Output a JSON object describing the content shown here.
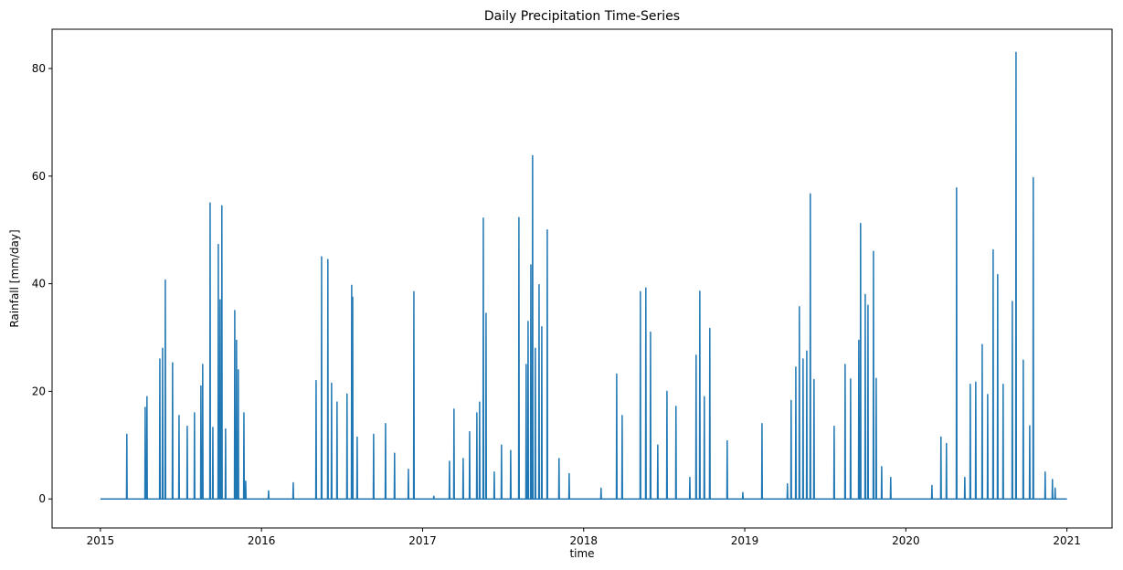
{
  "chart_data": {
    "type": "line",
    "title": "Daily Precipitation Time-Series",
    "xlabel": "time",
    "ylabel": "Rainfall [mm/day]",
    "color": "#1f77b4",
    "xlim": [
      2014.7,
      2021.28
    ],
    "xticks": [
      2015,
      2016,
      2017,
      2018,
      2019,
      2020,
      2021
    ],
    "ylim": [
      -5.4,
      87.3
    ],
    "yticks": [
      0,
      20,
      40,
      60,
      80
    ],
    "x": [
      2015.0,
      2015.162,
      2015.164,
      2015.166,
      2015.276,
      2015.278,
      2015.28,
      2015.287,
      2015.289,
      2015.291,
      2015.367,
      2015.369,
      2015.371,
      2015.384,
      2015.386,
      2015.388,
      2015.401,
      2015.403,
      2015.405,
      2015.446,
      2015.448,
      2015.45,
      2015.486,
      2015.488,
      2015.49,
      2015.537,
      2015.539,
      2015.541,
      2015.582,
      2015.584,
      2015.586,
      2015.622,
      2015.624,
      2015.626,
      2015.633,
      2015.635,
      2015.637,
      2015.679,
      2015.681,
      2015.683,
      2015.696,
      2015.698,
      2015.7,
      2015.73,
      2015.732,
      2015.734,
      2015.741,
      2015.743,
      2015.745,
      2015.752,
      2015.754,
      2015.756,
      2015.775,
      2015.777,
      2015.779,
      2015.832,
      2015.834,
      2015.836,
      2015.843,
      2015.845,
      2015.847,
      2015.854,
      2015.856,
      2015.858,
      2015.889,
      2015.891,
      2015.893,
      2015.9,
      2015.902,
      2015.904,
      2016.042,
      2016.044,
      2016.046,
      2016.195,
      2016.197,
      2016.199,
      2016.337,
      2016.339,
      2016.341,
      2016.371,
      2016.373,
      2016.375,
      2016.41,
      2016.412,
      2016.414,
      2016.433,
      2016.435,
      2016.437,
      2016.467,
      2016.469,
      2016.471,
      2016.529,
      2016.531,
      2016.533,
      2016.558,
      2016.56,
      2016.562,
      2016.564,
      2016.566,
      2016.568,
      2016.592,
      2016.594,
      2016.596,
      2016.694,
      2016.696,
      2016.698,
      2016.768,
      2016.77,
      2016.772,
      2016.824,
      2016.826,
      2016.828,
      2016.91,
      2016.912,
      2016.914,
      2016.944,
      2016.946,
      2016.948,
      2017.068,
      2017.07,
      2017.072,
      2017.165,
      2017.167,
      2017.169,
      2017.193,
      2017.195,
      2017.197,
      2017.25,
      2017.252,
      2017.254,
      2017.29,
      2017.292,
      2017.294,
      2017.335,
      2017.337,
      2017.339,
      2017.352,
      2017.354,
      2017.356,
      2017.375,
      2017.377,
      2017.379,
      2017.392,
      2017.394,
      2017.396,
      2017.443,
      2017.445,
      2017.447,
      2017.488,
      2017.49,
      2017.492,
      2017.545,
      2017.547,
      2017.549,
      2017.596,
      2017.598,
      2017.6,
      2017.641,
      2017.643,
      2017.645,
      2017.653,
      2017.655,
      2017.657,
      2017.67,
      2017.672,
      2017.674,
      2017.681,
      2017.683,
      2017.685,
      2017.698,
      2017.7,
      2017.702,
      2017.721,
      2017.723,
      2017.725,
      2017.738,
      2017.74,
      2017.742,
      2017.772,
      2017.774,
      2017.776,
      2017.845,
      2017.847,
      2017.849,
      2017.908,
      2017.91,
      2017.912,
      2018.106,
      2018.108,
      2018.11,
      2018.203,
      2018.205,
      2018.207,
      2018.237,
      2018.239,
      2018.241,
      2018.35,
      2018.352,
      2018.354,
      2018.384,
      2018.386,
      2018.388,
      2018.413,
      2018.415,
      2018.417,
      2018.458,
      2018.46,
      2018.462,
      2018.515,
      2018.517,
      2018.519,
      2018.571,
      2018.573,
      2018.575,
      2018.657,
      2018.659,
      2018.661,
      2018.696,
      2018.698,
      2018.7,
      2018.719,
      2018.721,
      2018.723,
      2018.747,
      2018.749,
      2018.751,
      2018.781,
      2018.783,
      2018.785,
      2018.889,
      2018.891,
      2018.893,
      2018.986,
      2018.988,
      2018.99,
      2019.105,
      2019.107,
      2019.109,
      2019.263,
      2019.265,
      2019.267,
      2019.286,
      2019.288,
      2019.29,
      2019.315,
      2019.317,
      2019.319,
      2019.337,
      2019.339,
      2019.341,
      2019.36,
      2019.362,
      2019.364,
      2019.383,
      2019.385,
      2019.387,
      2019.405,
      2019.407,
      2019.409,
      2019.428,
      2019.43,
      2019.432,
      2019.553,
      2019.555,
      2019.557,
      2019.621,
      2019.623,
      2019.625,
      2019.655,
      2019.657,
      2019.659,
      2019.706,
      2019.708,
      2019.71,
      2019.717,
      2019.719,
      2019.721,
      2019.746,
      2019.748,
      2019.75,
      2019.763,
      2019.765,
      2019.767,
      2019.797,
      2019.799,
      2019.801,
      2019.814,
      2019.816,
      2019.818,
      2019.848,
      2019.85,
      2019.852,
      2019.904,
      2019.906,
      2019.908,
      2020.16,
      2020.162,
      2020.164,
      2020.216,
      2020.218,
      2020.22,
      2020.25,
      2020.252,
      2020.254,
      2020.313,
      2020.315,
      2020.317,
      2020.364,
      2020.366,
      2020.368,
      2020.398,
      2020.4,
      2020.402,
      2020.432,
      2020.434,
      2020.436,
      2020.472,
      2020.474,
      2020.476,
      2020.506,
      2020.508,
      2020.51,
      2020.54,
      2020.542,
      2020.544,
      2020.568,
      2020.57,
      2020.572,
      2020.602,
      2020.604,
      2020.606,
      2020.659,
      2020.661,
      2020.663,
      2020.682,
      2020.684,
      2020.686,
      2020.727,
      2020.729,
      2020.731,
      2020.767,
      2020.769,
      2020.771,
      2020.789,
      2020.791,
      2020.793,
      2020.863,
      2020.865,
      2020.867,
      2020.908,
      2020.91,
      2020.912,
      2020.925,
      2020.927,
      2020.929,
      2021.0
    ],
    "values": [
      0,
      0,
      12,
      0,
      0,
      17,
      0,
      0,
      19,
      0,
      0,
      26,
      0,
      0,
      28,
      0,
      0,
      40.7,
      0,
      0,
      25.3,
      0,
      0,
      15.5,
      0,
      0,
      13.5,
      0,
      0,
      16,
      0,
      0,
      21,
      0,
      0,
      25,
      0,
      0,
      55,
      0,
      0,
      13.3,
      0,
      0,
      47.3,
      0,
      0,
      37,
      0,
      0,
      54.5,
      0,
      0,
      13,
      0,
      0,
      35,
      0,
      0,
      29.5,
      0,
      0,
      24,
      0,
      0,
      16,
      0,
      0,
      3.3,
      0,
      0,
      1.5,
      0,
      0,
      3,
      0,
      0,
      22,
      0,
      0,
      45,
      0,
      0,
      44.5,
      0,
      0,
      21.5,
      0,
      0,
      18,
      0,
      0,
      19.5,
      0,
      0,
      39.7,
      0,
      0,
      37.5,
      0,
      0,
      11.5,
      0,
      0,
      12,
      0,
      0,
      14,
      0,
      0,
      8.5,
      0,
      0,
      5.5,
      0,
      0,
      38.5,
      0,
      0,
      0.5,
      0,
      0,
      7,
      0,
      0,
      16.7,
      0,
      0,
      7.5,
      0,
      0,
      12.5,
      0,
      0,
      16,
      0,
      0,
      18,
      0,
      0,
      52.2,
      0,
      0,
      34.5,
      0,
      0,
      5,
      0,
      0,
      10,
      0,
      0,
      9,
      0,
      0,
      52.3,
      0,
      0,
      25,
      0,
      0,
      33,
      0,
      0,
      43.5,
      0,
      0,
      63.8,
      0,
      0,
      28,
      0,
      0,
      39.8,
      0,
      0,
      32,
      0,
      0,
      50,
      0,
      0,
      7.5,
      0,
      0,
      4.7,
      0,
      0,
      2,
      0,
      0,
      23.2,
      0,
      0,
      15.5,
      0,
      0,
      38.5,
      0,
      0,
      39.2,
      0,
      0,
      31,
      0,
      0,
      10,
      0,
      0,
      20,
      0,
      0,
      17.2,
      0,
      0,
      4,
      0,
      0,
      26.7,
      0,
      0,
      38.6,
      0,
      0,
      19,
      0,
      0,
      31.7,
      0,
      0,
      10.8,
      0,
      0,
      1.2,
      0,
      0,
      14,
      0,
      0,
      2.8,
      0,
      0,
      18.3,
      0,
      0,
      24.5,
      0,
      0,
      35.7,
      0,
      0,
      26,
      0,
      0,
      27.5,
      0,
      0,
      56.7,
      0,
      0,
      22.2,
      0,
      0,
      13.5,
      0,
      0,
      25,
      0,
      0,
      22.3,
      0,
      0,
      29.5,
      0,
      0,
      51.2,
      0,
      0,
      38,
      0,
      0,
      36,
      0,
      0,
      46,
      0,
      0,
      22.4,
      0,
      0,
      6,
      0,
      0,
      4,
      0,
      0,
      2.5,
      0,
      0,
      11.5,
      0,
      0,
      10.3,
      0,
      0,
      57.8,
      0,
      0,
      4,
      0,
      0,
      21.3,
      0,
      0,
      21.7,
      0,
      0,
      28.7,
      0,
      0,
      19.4,
      0,
      0,
      46.3,
      0,
      0,
      41.7,
      0,
      0,
      21.3,
      0,
      0,
      36.7,
      0,
      0,
      83,
      0,
      0,
      25.8,
      0,
      0,
      13.6,
      0,
      0,
      59.7,
      0,
      0,
      5,
      0,
      0,
      3.6,
      0,
      0,
      2,
      0,
      0
    ]
  }
}
